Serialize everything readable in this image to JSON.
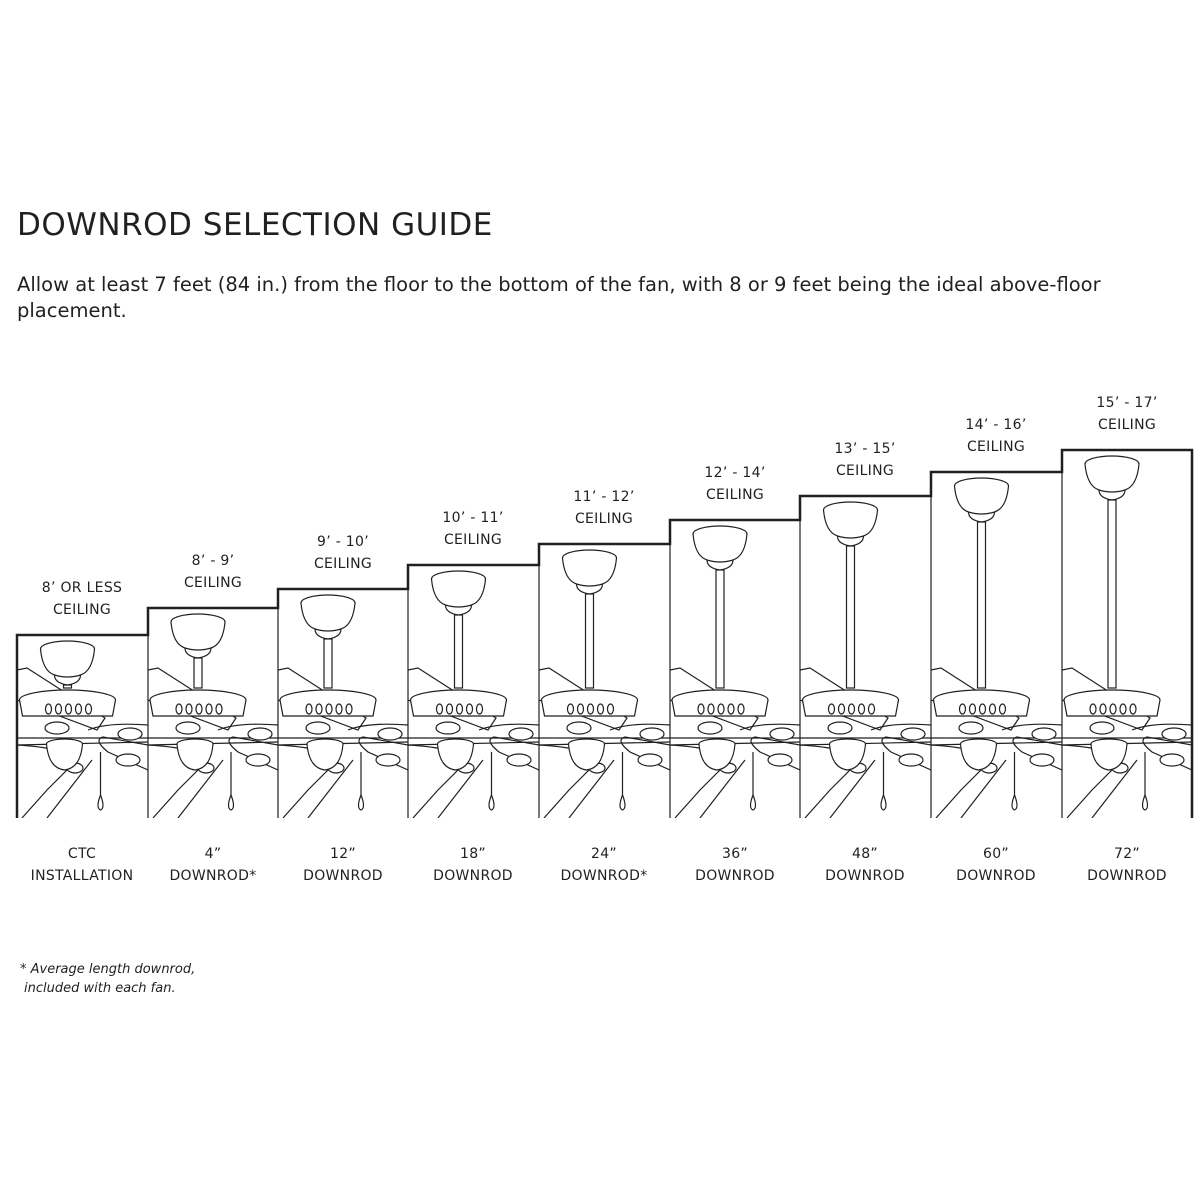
{
  "title": "DOWNROD SELECTION GUIDE",
  "intro": "Allow at least 7 feet (84 in.) from the floor to the bottom of the fan, with 8 or 9 feet being the ideal above-floor placement.",
  "panels": [
    {
      "ceiling": [
        "8’ OR LESS",
        "CEILING"
      ],
      "downrod": [
        "CTC",
        "INSTALLATION"
      ]
    },
    {
      "ceiling": [
        "8’ - 9’",
        "CEILING"
      ],
      "downrod": [
        "4”",
        "DOWNROD*"
      ]
    },
    {
      "ceiling": [
        "9’ - 10’",
        "CEILING"
      ],
      "downrod": [
        "12”",
        "DOWNROD"
      ]
    },
    {
      "ceiling": [
        "10’ - 11’",
        "CEILING"
      ],
      "downrod": [
        "18”",
        "DOWNROD"
      ]
    },
    {
      "ceiling": [
        "11’ - 12’",
        "CEILING"
      ],
      "downrod": [
        "24”",
        "DOWNROD*"
      ]
    },
    {
      "ceiling": [
        "12’ - 14’",
        "CEILING"
      ],
      "downrod": [
        "36”",
        "DOWNROD"
      ]
    },
    {
      "ceiling": [
        "13’ - 15’",
        "CEILING"
      ],
      "downrod": [
        "48”",
        "DOWNROD"
      ]
    },
    {
      "ceiling": [
        "14’ - 16’",
        "CEILING"
      ],
      "downrod": [
        "60”",
        "DOWNROD"
      ]
    },
    {
      "ceiling": [
        "15’ - 17’",
        "CEILING"
      ],
      "downrod": [
        "72”",
        "DOWNROD"
      ]
    }
  ],
  "footnote": [
    "* Average length downrod,",
    "included with each fan."
  ],
  "colors": {
    "line": "#231f20",
    "background": "#ffffff"
  }
}
